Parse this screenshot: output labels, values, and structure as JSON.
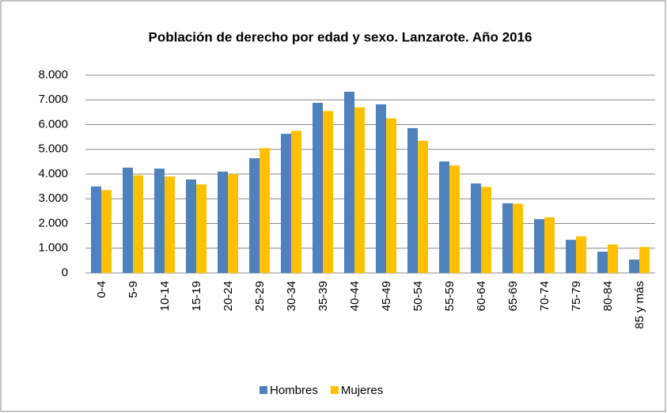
{
  "chart_data": {
    "type": "bar",
    "title": "Población de derecho por edad y sexo. Lanzarote. Año 2016",
    "categories": [
      "0-4",
      "5-9",
      "10-14",
      "15-19",
      "20-24",
      "25-29",
      "30-34",
      "35-39",
      "40-44",
      "45-49",
      "50-54",
      "55-59",
      "60-64",
      "65-69",
      "70-74",
      "75-79",
      "80-84",
      "85 y más"
    ],
    "series": [
      {
        "name": "Hombres",
        "color": "#4f81bd",
        "values": [
          3500,
          4260,
          4220,
          3780,
          4100,
          4640,
          5630,
          6880,
          7330,
          6820,
          5860,
          4510,
          3620,
          2820,
          2180,
          1340,
          860,
          540
        ]
      },
      {
        "name": "Mujeres",
        "color": "#ffc000",
        "values": [
          3350,
          3950,
          3900,
          3580,
          4000,
          5050,
          5750,
          6550,
          6700,
          6250,
          5350,
          4350,
          3480,
          2800,
          2250,
          1480,
          1150,
          1050
        ]
      }
    ],
    "ylim": [
      0,
      8000
    ],
    "yticks": [
      0,
      {
        "value": 1000,
        "label": "1.000"
      },
      {
        "value": 2000,
        "label": "2.000"
      },
      {
        "value": 3000,
        "label": "3.000"
      },
      {
        "value": 4000,
        "label": "4.000"
      },
      {
        "value": 5000,
        "label": "5.000"
      },
      {
        "value": 6000,
        "label": "6.000"
      },
      {
        "value": 7000,
        "label": "7.000"
      },
      {
        "value": 8000,
        "label": "8.000"
      }
    ],
    "grid": true,
    "legend": "bottom"
  }
}
